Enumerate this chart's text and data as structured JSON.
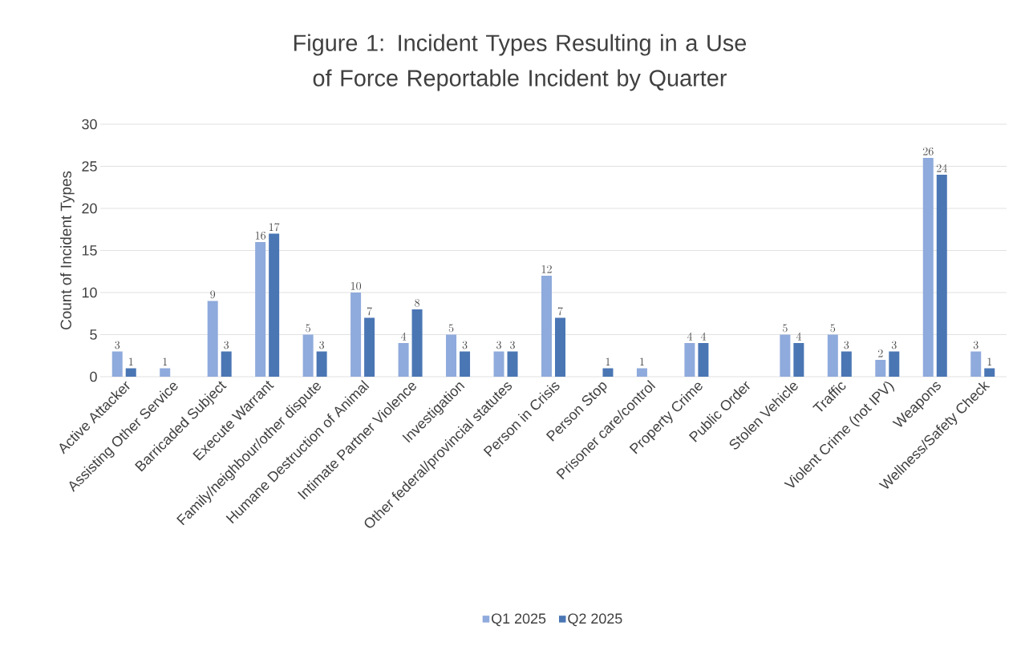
{
  "chart_data": {
    "type": "bar",
    "title": "Figure 1: Incident Types Resulting in a Use of Force Reportable Incident by Quarter",
    "ylabel": "Count of Incident Types",
    "categories": [
      "Active Attacker",
      "Assisting Other Service",
      "Barricaded Subject",
      "Execute Warrant",
      "Family/neighbour/other dispute",
      "Humane Destruction of Animal",
      "Intimate Partner Violence",
      "Investigation",
      "Other federal/provincial statutes",
      "Person in Crisis",
      "Person Stop",
      "Prisoner care/control",
      "Property Crime",
      "Public Order",
      "Stolen Vehicle",
      "Traffic",
      "Violent Crime (not IPV)",
      "Weapons",
      "Wellness/Safety Check"
    ],
    "series": [
      {
        "name": "Q1 2025",
        "color": "#8faadc",
        "values": [
          3,
          1,
          9,
          16,
          5,
          10,
          4,
          5,
          3,
          12,
          null,
          1,
          4,
          null,
          5,
          5,
          2,
          26,
          3
        ]
      },
      {
        "name": "Q2 2025",
        "color": "#4a76b4",
        "values": [
          1,
          null,
          3,
          17,
          3,
          7,
          8,
          3,
          3,
          7,
          1,
          null,
          4,
          null,
          4,
          3,
          3,
          24,
          1
        ]
      }
    ],
    "ylim": [
      0,
      30
    ],
    "yticks": [
      0,
      5,
      10,
      15,
      20,
      25,
      30
    ],
    "grid": "y",
    "legend": "bottom",
    "data_labels": true
  }
}
